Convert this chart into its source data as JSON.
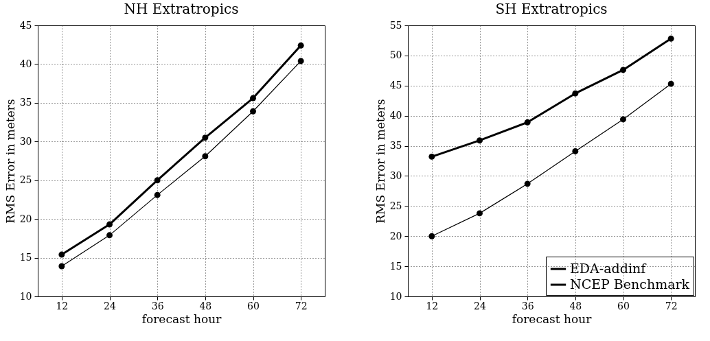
{
  "chart_data": [
    {
      "type": "line",
      "title": "NH Extratropics",
      "xlabel": "forecast hour",
      "ylabel": "RMS Error in meters",
      "x": [
        12,
        24,
        36,
        48,
        60,
        72
      ],
      "xlim": [
        6,
        78
      ],
      "xticks": [
        12,
        24,
        36,
        48,
        60,
        72
      ],
      "ylim": [
        10,
        45
      ],
      "yticks": [
        10,
        15,
        20,
        25,
        30,
        35,
        40,
        45
      ],
      "grid": true,
      "legend": false,
      "marker": "circle",
      "line_style": "solid",
      "series": [
        {
          "color": "#000000",
          "values": [
            13.9,
            17.9,
            23.1,
            28.1,
            33.9,
            40.4
          ]
        },
        {
          "color": "#000000",
          "values": [
            15.4,
            19.3,
            25.0,
            30.5,
            35.6,
            42.4
          ]
        }
      ]
    },
    {
      "type": "line",
      "title": "SH Extratropics",
      "xlabel": "forecast hour",
      "ylabel": "RMS Error in meters",
      "x": [
        12,
        24,
        36,
        48,
        60,
        72
      ],
      "xlim": [
        6,
        78
      ],
      "xticks": [
        12,
        24,
        36,
        48,
        60,
        72
      ],
      "ylim": [
        10,
        55
      ],
      "yticks": [
        10,
        15,
        20,
        25,
        30,
        35,
        40,
        45,
        50,
        55
      ],
      "grid": true,
      "legend": "bottom right",
      "marker": "circle",
      "line_style": "solid",
      "series": [
        {
          "name": "EDA-addinf",
          "color": "#000000",
          "values": [
            20.0,
            23.8,
            28.7,
            34.1,
            39.4,
            45.3
          ]
        },
        {
          "name": "NCEP Benchmark",
          "color": "#000000",
          "values": [
            33.2,
            35.9,
            38.9,
            43.7,
            47.6,
            52.8
          ]
        }
      ]
    }
  ]
}
